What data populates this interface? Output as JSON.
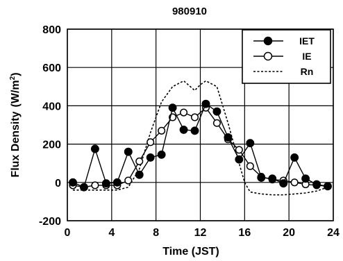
{
  "chart_data": {
    "type": "line",
    "title": "980910",
    "xlabel": "Time (JST)",
    "ylabel_main": "Flux Density",
    "ylabel_unit": "(W/m",
    "ylabel_sup": "2",
    "ylabel_close": ")",
    "xlim": [
      0,
      24
    ],
    "ylim": [
      -200,
      800
    ],
    "xticks": [
      0,
      4,
      8,
      12,
      16,
      20,
      24
    ],
    "yticks": [
      -200,
      0,
      200,
      400,
      600,
      800
    ],
    "grid": true,
    "legend_position": "top-right",
    "series": [
      {
        "name": "IET",
        "style": "filled-circle-line",
        "x": [
          0.5,
          1.5,
          2.5,
          3.5,
          4.5,
          5.5,
          6.5,
          7.5,
          8.5,
          9.5,
          10.5,
          11.5,
          12.5,
          13.5,
          14.5,
          15.5,
          16.5,
          17.5,
          18.5,
          19.5,
          20.5,
          21.5,
          22.5,
          23.5
        ],
        "y": [
          0,
          -25,
          175,
          -5,
          0,
          160,
          40,
          130,
          145,
          390,
          275,
          270,
          410,
          370,
          235,
          120,
          205,
          25,
          20,
          -5,
          130,
          20,
          -10,
          -20
        ]
      },
      {
        "name": "IE",
        "style": "open-circle-line",
        "x": [
          0.5,
          1.5,
          2.5,
          3.5,
          4.5,
          5.5,
          6.5,
          7.5,
          8.5,
          9.5,
          10.5,
          11.5,
          12.5,
          13.5,
          14.5,
          15.5,
          16.5,
          17.5,
          18.5,
          19.5,
          20.5,
          21.5,
          22.5,
          23.5
        ],
        "y": [
          -15,
          -25,
          -15,
          -15,
          -15,
          10,
          110,
          210,
          270,
          340,
          365,
          340,
          390,
          310,
          225,
          170,
          85,
          30,
          15,
          10,
          0,
          -10,
          -15,
          -20
        ]
      },
      {
        "name": "Rn",
        "style": "dashed-line",
        "x": [
          0.5,
          1.5,
          2.5,
          3.5,
          4.5,
          5.5,
          6.5,
          7.5,
          8.5,
          9.5,
          10.5,
          11.5,
          12.0,
          12.5,
          13.5,
          14.5,
          15.5,
          16.0,
          16.5,
          17.5,
          18.5,
          19.5,
          20.5,
          21.5,
          22.5,
          23.5
        ],
        "y": [
          -40,
          -40,
          -40,
          -40,
          -40,
          -25,
          70,
          260,
          420,
          500,
          530,
          480,
          510,
          530,
          500,
          310,
          100,
          0,
          -50,
          -60,
          -65,
          -65,
          -60,
          -55,
          -45,
          -25
        ]
      }
    ]
  }
}
